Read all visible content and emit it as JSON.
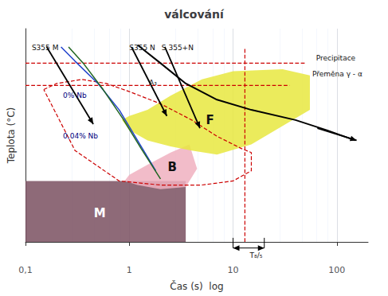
{
  "chart_data": {
    "type": "line",
    "title": "válcování",
    "x_label": "Čas (s)  log",
    "y_label": "Teplota (°C)",
    "log": "x",
    "xlim": [
      0.1,
      200
    ],
    "ylim": [
      0.0,
      1.05
    ],
    "xticks": [
      {
        "value": 0.1,
        "label": "0,1"
      },
      1,
      10,
      100
    ],
    "tick_labels": "x",
    "grid": true,
    "series": [
      {
        "type": "area",
        "color": "#7a5060",
        "x": [
          0.1,
          3.5,
          3.5,
          0.1
        ],
        "y": [
          0.0,
          0.0,
          0.3,
          0.3
        ]
      },
      {
        "type": "area",
        "color": "#f0b0c0",
        "x": [
          0.9,
          1.2,
          2.0,
          3.5,
          4.5,
          3.8,
          2.5,
          1.5,
          1.0,
          0.9
        ],
        "y": [
          0.3,
          0.28,
          0.26,
          0.27,
          0.36,
          0.48,
          0.44,
          0.38,
          0.33,
          0.3
        ]
      },
      {
        "type": "area",
        "color": "#e8e840",
        "x": [
          0.85,
          1.0,
          1.5,
          2.5,
          4.0,
          7.0,
          15.0,
          55.0,
          55.0,
          30.0,
          10.0,
          5.0,
          2.5,
          1.5,
          1.0,
          0.85
        ],
        "y": [
          0.6,
          0.55,
          0.5,
          0.47,
          0.45,
          0.43,
          0.48,
          0.65,
          0.82,
          0.85,
          0.84,
          0.8,
          0.72,
          0.65,
          0.62,
          0.6
        ]
      },
      {
        "type": "line",
        "line_style": "dashed",
        "color": "#cc0000",
        "x": [
          0.15,
          0.2,
          0.35,
          0.6,
          1.0,
          2.0,
          4.0,
          7.0,
          12.0,
          15.0,
          15.0,
          10.0,
          5.0,
          2.0,
          0.8,
          0.3,
          0.15
        ],
        "y": [
          0.75,
          0.78,
          0.8,
          0.78,
          0.74,
          0.68,
          0.6,
          0.52,
          0.46,
          0.44,
          0.35,
          0.3,
          0.28,
          0.28,
          0.3,
          0.45,
          0.75
        ]
      },
      {
        "type": "line",
        "line_style": "dashed",
        "color": "#cc0000",
        "x": [
          0.1,
          35
        ],
        "y": [
          0.77,
          0.77
        ]
      },
      {
        "type": "line",
        "line_style": "dashed",
        "color": "#cc0000",
        "x": [
          0.1,
          50
        ],
        "y": [
          0.88,
          0.88
        ]
      },
      {
        "type": "line",
        "line_style": "dashed",
        "color": "#cc0000",
        "x": [
          13,
          13
        ],
        "y": [
          0.0,
          0.95
        ]
      },
      {
        "type": "line",
        "line_style": "solid",
        "color": "#2244cc",
        "x": [
          0.22,
          0.3,
          0.5,
          0.8,
          1.2,
          1.8
        ],
        "y": [
          0.96,
          0.89,
          0.78,
          0.65,
          0.5,
          0.35
        ]
      },
      {
        "type": "line",
        "line_style": "solid",
        "color": "#226622",
        "x": [
          0.26,
          0.36,
          0.56,
          0.86,
          1.3,
          2.0
        ],
        "y": [
          0.96,
          0.88,
          0.75,
          0.61,
          0.46,
          0.31
        ]
      },
      {
        "type": "line",
        "line_style": "solid",
        "color": "black",
        "x": [
          1.2,
          2.0,
          3.5,
          7.0,
          15.0,
          40.0,
          80.0,
          150.0
        ],
        "y": [
          0.97,
          0.88,
          0.78,
          0.7,
          0.65,
          0.6,
          0.55,
          0.5
        ]
      }
    ],
    "arrows": [
      {
        "marker": "arrow",
        "x": [
          0.16,
          0.45
        ],
        "y": [
          0.96,
          0.58
        ]
      },
      {
        "marker": "arrow",
        "x": [
          1.05,
          2.3
        ],
        "y": [
          0.96,
          0.62
        ]
      },
      {
        "marker": "arrow",
        "x": [
          2.2,
          4.8
        ],
        "y": [
          0.96,
          0.56
        ]
      },
      {
        "marker": "arrow",
        "x": [
          65,
          155
        ],
        "y": [
          0.56,
          0.5
        ]
      },
      {
        "marker": "double_arrow",
        "x": [
          20,
          10
        ],
        "y": [
          -0.03,
          -0.03
        ]
      },
      {
        "marker": "none",
        "x": [
          10,
          10
        ],
        "y": [
          -0.03,
          0.02
        ]
      },
      {
        "marker": "none",
        "x": [
          20,
          20
        ],
        "y": [
          -0.03,
          0.02
        ]
      }
    ],
    "annotations": [
      {
        "text": "F",
        "x": 6.0,
        "y": 0.6
      },
      {
        "text": "B",
        "x": 2.6,
        "y": 0.37
      },
      {
        "text": "M",
        "x": 0.52,
        "y": 0.14,
        "color": "white"
      },
      {
        "text": "A₃",
        "x": 1.55,
        "y": 0.785
      },
      {
        "text": "Precipitace",
        "x": 63,
        "y": 0.905
      },
      {
        "text": "Přeměna γ - α",
        "x": 58,
        "y": 0.825
      },
      {
        "text": "0% Nb",
        "x": 0.23,
        "y": 0.72,
        "color": "navy"
      },
      {
        "text": "0,04% Nb",
        "x": 0.23,
        "y": 0.52,
        "color": "navy"
      },
      {
        "text": "S355 M",
        "x": 0.115,
        "y": 0.957
      },
      {
        "text": "S355 N",
        "x": 1.0,
        "y": 0.957
      },
      {
        "text": "S 355+N",
        "x": 2.05,
        "y": 0.957
      },
      {
        "text": "T₈/₅",
        "x": 14.5,
        "y": -0.065
      }
    ]
  }
}
